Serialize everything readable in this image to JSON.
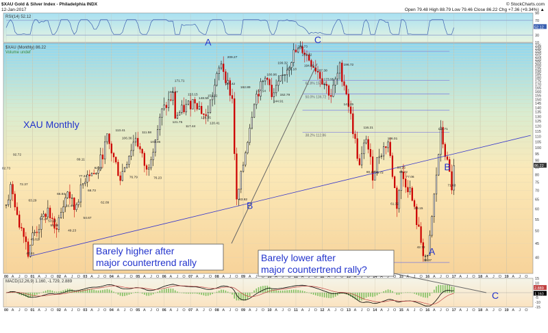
{
  "header": {
    "symbol": "$XAU Gold & Silver Index - Philadelphia INDX",
    "date": "12-Jan-2017",
    "brand": "© StockCharts.com",
    "quote": "Open 79.48  High 88.79  Low 79.46  Close 86.22  Chg +7.36 (+9.34%) ▲"
  },
  "chart_data": [
    {
      "type": "line",
      "panel": "rsi",
      "title": "RSI(14) 52.12",
      "ylim": [
        10,
        90
      ],
      "yticks": [
        "90",
        "70",
        "50",
        "30",
        "10"
      ],
      "last_value_label": "52.12",
      "levels": [
        70,
        30
      ]
    },
    {
      "type": "candlestick",
      "panel": "price",
      "title": "$XAU (Monthly) 86.22",
      "subtitle": "Volume undef",
      "big_title": "XAU Monthly",
      "scale": "log",
      "ylim": [
        35,
        240
      ],
      "yticks": [
        235,
        230,
        225,
        220,
        215,
        210,
        205,
        200,
        195,
        190,
        185,
        180,
        175,
        170,
        165,
        160,
        155,
        150,
        145,
        140,
        135,
        130,
        125,
        120,
        115,
        110,
        105,
        100,
        95,
        90,
        85,
        80,
        75,
        70,
        65,
        60,
        55,
        50,
        45,
        40
      ],
      "last_value_label": "86.22",
      "x_start": "2000-01",
      "x_end": "2019-12",
      "year_labels": [
        "00",
        "01",
        "02",
        "03",
        "04",
        "05",
        "06",
        "07",
        "08",
        "09",
        "10",
        "11",
        "12",
        "13",
        "14",
        "15",
        "16",
        "17",
        "18",
        "19"
      ],
      "month_letters": [
        "A",
        "J",
        "O"
      ],
      "path_points": [
        {
          "t": "2000-01",
          "v": 62
        },
        {
          "t": "2000-03",
          "v": 72
        },
        {
          "t": "2000-05",
          "v": 63
        },
        {
          "t": "2000-06",
          "v": 55
        },
        {
          "t": "2000-09",
          "v": 50
        },
        {
          "t": "2000-11",
          "v": 42
        },
        {
          "t": "2001-01",
          "v": 48
        },
        {
          "t": "2001-04",
          "v": 52
        },
        {
          "t": "2001-08",
          "v": 60
        },
        {
          "t": "2001-11",
          "v": 50
        },
        {
          "t": "2002-02",
          "v": 58
        },
        {
          "t": "2002-05",
          "v": 70
        },
        {
          "t": "2002-08",
          "v": 60
        },
        {
          "t": "2003-02",
          "v": 82
        },
        {
          "t": "2003-06",
          "v": 80
        },
        {
          "t": "2003-11",
          "v": 108
        },
        {
          "t": "2004-05",
          "v": 78
        },
        {
          "t": "2004-12",
          "v": 110
        },
        {
          "t": "2005-05",
          "v": 82
        },
        {
          "t": "2005-12",
          "v": 135
        },
        {
          "t": "2006-05",
          "v": 155
        },
        {
          "t": "2006-06",
          "v": 130
        },
        {
          "t": "2007-03",
          "v": 150
        },
        {
          "t": "2007-08",
          "v": 128
        },
        {
          "t": "2008-03",
          "v": 205
        },
        {
          "t": "2008-08",
          "v": 150
        },
        {
          "t": "2008-10",
          "v": 63
        },
        {
          "t": "2009-06",
          "v": 150
        },
        {
          "t": "2009-12",
          "v": 185
        },
        {
          "t": "2010-02",
          "v": 150
        },
        {
          "t": "2010-12",
          "v": 220
        },
        {
          "t": "2011-04",
          "v": 228
        },
        {
          "t": "2011-09",
          "v": 200
        },
        {
          "t": "2011-11",
          "v": 190
        },
        {
          "t": "2012-05",
          "v": 155
        },
        {
          "t": "2012-09",
          "v": 195
        },
        {
          "t": "2012-12",
          "v": 160
        },
        {
          "t": "2013-06",
          "v": 85
        },
        {
          "t": "2013-09",
          "v": 110
        },
        {
          "t": "2013-12",
          "v": 80
        },
        {
          "t": "2014-03",
          "v": 95
        },
        {
          "t": "2014-07",
          "v": 105
        },
        {
          "t": "2014-11",
          "v": 62
        },
        {
          "t": "2015-01",
          "v": 80
        },
        {
          "t": "2015-05",
          "v": 70
        },
        {
          "t": "2015-11",
          "v": 42
        },
        {
          "t": "2016-01",
          "v": 39
        },
        {
          "t": "2016-07",
          "v": 114
        },
        {
          "t": "2016-11",
          "v": 80
        },
        {
          "t": "2016-12",
          "v": 72
        },
        {
          "t": "2017-01",
          "v": 86.22
        }
      ],
      "price_labels": [
        {
          "t": "2000-01",
          "v": 82.73,
          "text": "82.73"
        },
        {
          "t": "2000-06",
          "v": 92.72,
          "text": "92.72"
        },
        {
          "t": "2000-09",
          "v": 72.37,
          "text": "72.37"
        },
        {
          "t": "2001-01",
          "v": 63.29,
          "text": "63.29"
        },
        {
          "t": "2001-06",
          "v": 54.24,
          "text": "54.24"
        },
        {
          "t": "2002-02",
          "v": 66.84,
          "text": "66.84"
        },
        {
          "t": "2001-10",
          "v": 53.2,
          "text": "53.20"
        },
        {
          "t": "2000-12",
          "v": 40.61,
          "text": "40.61"
        },
        {
          "t": "2001-02",
          "v": 45.62,
          "text": "45.62"
        },
        {
          "t": "2001-11",
          "v": 51.36,
          "text": "51.36"
        },
        {
          "t": "2002-07",
          "v": 49.23,
          "text": "49.23"
        },
        {
          "t": "2002-06",
          "v": 60.44,
          "text": "60.44"
        },
        {
          "t": "2002-11",
          "v": 89.11,
          "text": "89.11"
        },
        {
          "t": "2002-12",
          "v": 77.34,
          "text": "77.34"
        },
        {
          "t": "2003-07",
          "v": 82.89,
          "text": "82.89"
        },
        {
          "t": "2003-04",
          "v": 68.73,
          "text": "68.73"
        },
        {
          "t": "2003-02",
          "v": 54.67,
          "text": "54.67"
        },
        {
          "t": "2003-10",
          "v": 62.09,
          "text": "62.09"
        },
        {
          "t": "2004-05",
          "v": 113.41,
          "text": "113.41"
        },
        {
          "t": "2004-08",
          "v": 106.36,
          "text": "106.36"
        },
        {
          "t": "2004-11",
          "v": 76.79,
          "text": "76.79"
        },
        {
          "t": "2005-05",
          "v": 111.58,
          "text": "111.58"
        },
        {
          "t": "2005-09",
          "v": 103.06,
          "text": "103.06"
        },
        {
          "t": "2005-10",
          "v": 76.23,
          "text": "76.23"
        },
        {
          "t": "2006-05",
          "v": 156.47,
          "text": "156.47"
        },
        {
          "t": "2006-08",
          "v": 171.71,
          "text": "171.71"
        },
        {
          "t": "2006-07",
          "v": 121.75,
          "text": "121.75"
        },
        {
          "t": "2007-02",
          "v": 153.15,
          "text": "153.15"
        },
        {
          "t": "2007-07",
          "v": 148.59,
          "text": "148.59"
        },
        {
          "t": "2007-11",
          "v": 151.32,
          "text": "151.32"
        },
        {
          "t": "2007-01",
          "v": 117.44,
          "text": "117.44"
        },
        {
          "t": "2007-08",
          "v": 126.35,
          "text": "126.35"
        },
        {
          "t": "2007-12",
          "v": 120.41,
          "text": "120.41"
        },
        {
          "t": "2008-07",
          "v": 167.42,
          "text": "167.42"
        },
        {
          "t": "2008-08",
          "v": 209.27,
          "text": "209.27"
        },
        {
          "t": "2009-02",
          "v": 162.89,
          "text": "162.89"
        },
        {
          "t": "2009-01",
          "v": 63.82,
          "text": "63.82"
        },
        {
          "t": "2009-09",
          "v": 157.54,
          "text": "157.54"
        },
        {
          "t": "2010-02",
          "v": 180.96,
          "text": "180.96"
        },
        {
          "t": "2010-07",
          "v": 199.32,
          "text": "199.32"
        },
        {
          "t": "2010-08",
          "v": 152.79,
          "text": "152.79"
        },
        {
          "t": "2010-05",
          "v": 144.91,
          "text": "144.91"
        },
        {
          "t": "2010-11",
          "v": 189.18,
          "text": "189.18"
        },
        {
          "t": "2011-04",
          "v": 228.73,
          "text": "228.73"
        },
        {
          "t": "2011-06",
          "v": 213.42,
          "text": "213.42"
        },
        {
          "t": "2011-07",
          "v": 194.8,
          "text": "194.80"
        },
        {
          "t": "2012-01",
          "v": 187.38,
          "text": "187.38"
        },
        {
          "t": "2012-04",
          "v": 173.95,
          "text": "173.95"
        },
        {
          "t": "2013-01",
          "v": 196.72,
          "text": "196.72"
        },
        {
          "t": "2013-01",
          "v": 141.25,
          "text": "141.25"
        },
        {
          "t": "2013-10",
          "v": 116.21,
          "text": "116.21"
        },
        {
          "t": "2014-09",
          "v": 106.01,
          "text": "106.01"
        },
        {
          "t": "2013-11",
          "v": 80.25,
          "text": "80.25"
        },
        {
          "t": "2014-03",
          "v": 79.72,
          "text": "79.72"
        },
        {
          "t": "2015-02",
          "v": 80.22,
          "text": "80.22"
        },
        {
          "t": "2015-01",
          "v": 83.25,
          "text": "83.25"
        },
        {
          "t": "2015-05",
          "v": 77.06,
          "text": "77.06"
        },
        {
          "t": "2014-10",
          "v": 61.39,
          "text": "61.39"
        },
        {
          "t": "2015-09",
          "v": 59.15,
          "text": "59.15"
        },
        {
          "t": "2015-10",
          "v": 42.72,
          "text": "42.72"
        },
        {
          "t": "2016-01",
          "v": 38.37,
          "text": "38.37"
        },
        {
          "t": "2016-08",
          "v": 114.71,
          "text": "114.71"
        },
        {
          "t": "2016-12",
          "v": 71.63,
          "text": "71.63"
        }
      ],
      "fib_lines": [
        {
          "v": 224,
          "text": ""
        },
        {
          "v": 176,
          "text": "61.8% 150.70"
        },
        {
          "v": 157,
          "text": "50.0% 136.72"
        },
        {
          "v": 137,
          "text": ""
        },
        {
          "v": 114,
          "text": "38.2% 112.86"
        }
      ],
      "fib_line_color": "#7a7adf",
      "wave_labels": [
        {
          "t": "2007-09",
          "v": 235,
          "text": "A"
        },
        {
          "t": "2009-04",
          "v": 60,
          "text": "B"
        },
        {
          "t": "2011-11",
          "v": 240,
          "text": "C"
        },
        {
          "t": "2016-10",
          "v": 83,
          "text": "B"
        },
        {
          "t": "2016-03",
          "v": 41,
          "text": "A"
        }
      ],
      "annotations": [
        "Barely higher after major countertrend rally",
        "Barely lower after major countertrend rally?"
      ],
      "trendline": [
        {
          "t": "2000-12",
          "v": 40.5
        },
        {
          "t": "2019-12",
          "v": 111
        }
      ],
      "up_color": "#000000",
      "down_color": "#cc0000"
    },
    {
      "type": "line",
      "panel": "macd",
      "title": "MACD(12,26,9) 1.160, -1.729, 2.889",
      "ylim": [
        -15,
        15
      ],
      "yticks": [
        "15",
        "10",
        "5",
        "0",
        "-5",
        "-10",
        "-15"
      ],
      "last_value_labels": [
        "1.160",
        "2.889"
      ],
      "series": [
        {
          "values": []
        },
        {
          "values": []
        }
      ],
      "c_label": "C"
    }
  ]
}
